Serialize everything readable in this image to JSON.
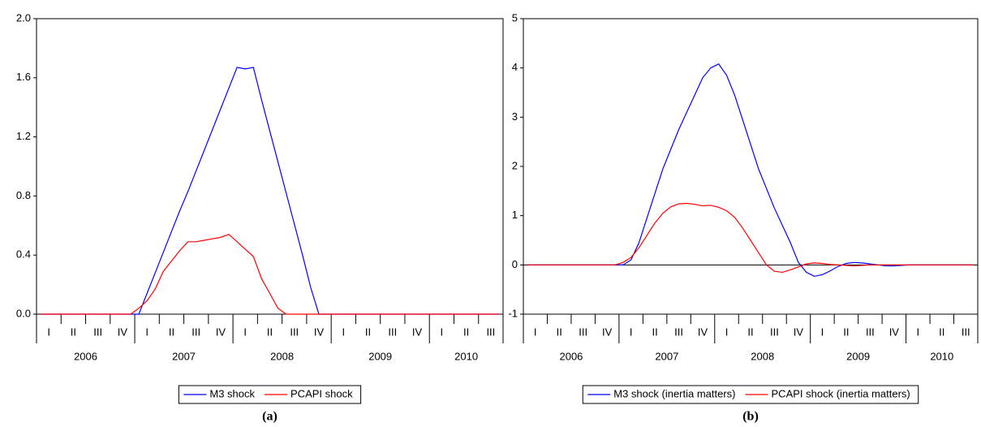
{
  "chart_data": [
    {
      "type": "line",
      "caption": "(a)",
      "categories": [
        null,
        "I",
        null,
        null,
        "II",
        null,
        null,
        "III",
        null,
        null,
        "IV",
        null,
        null,
        "I",
        null,
        null,
        "II",
        null,
        null,
        "III",
        null,
        null,
        "IV",
        null,
        null,
        "I",
        null,
        null,
        "II",
        null,
        null,
        "III",
        null,
        null,
        "IV",
        null,
        null,
        "I",
        null,
        null,
        "II",
        null,
        null,
        "III",
        null,
        null,
        "IV",
        null,
        null,
        "I",
        null,
        null,
        "II",
        null,
        null,
        "III",
        null
      ],
      "x_groups": [
        "2006",
        "2007",
        "2008",
        "2009",
        "2010"
      ],
      "series": [
        {
          "name": "M3 shock",
          "color": "#0000ff",
          "values": [
            0,
            0,
            0,
            0,
            0,
            0,
            0,
            0,
            0,
            0,
            0,
            0,
            0,
            0.14,
            0.28,
            0.42,
            0.56,
            0.7,
            0.83,
            0.97,
            1.11,
            1.25,
            1.39,
            1.53,
            1.67,
            1.66,
            1.67,
            1.45,
            1.24,
            1.03,
            0.82,
            0.61,
            0.4,
            0.18,
            0,
            0,
            0,
            0,
            0,
            0,
            0,
            0,
            0,
            0,
            0,
            0,
            0,
            0,
            0,
            0,
            0,
            0,
            0,
            0,
            0,
            0,
            0
          ]
        },
        {
          "name": "PCAPI shock",
          "color": "#ff0000",
          "values": [
            0,
            0,
            0,
            0,
            0,
            0,
            0,
            0,
            0,
            0,
            0,
            0,
            0.04,
            0.09,
            0.17,
            0.29,
            0.36,
            0.43,
            0.49,
            0.49,
            0.5,
            0.51,
            0.52,
            0.54,
            0.49,
            0.44,
            0.39,
            0.24,
            0.14,
            0.04,
            0,
            0,
            0,
            0,
            0,
            0,
            0,
            0,
            0,
            0,
            0,
            0,
            0,
            0,
            0,
            0,
            0,
            0,
            0,
            0,
            0,
            0,
            0,
            0,
            0,
            0,
            0
          ]
        }
      ],
      "ylim": [
        0,
        2
      ],
      "yticks": [
        {
          "value": 0,
          "label": "0.0"
        },
        {
          "value": 0.4,
          "label": "0.4"
        },
        {
          "value": 0.8,
          "label": "0.8"
        },
        {
          "value": 1.2,
          "label": "1.2"
        },
        {
          "value": 1.6,
          "label": "1.6"
        },
        {
          "value": 2,
          "label": "2.0"
        }
      ],
      "zero_line": false
    },
    {
      "type": "line",
      "caption": "(b)",
      "categories": [
        null,
        "I",
        null,
        null,
        "II",
        null,
        null,
        "III",
        null,
        null,
        "IV",
        null,
        null,
        "I",
        null,
        null,
        "II",
        null,
        null,
        "III",
        null,
        null,
        "IV",
        null,
        null,
        "I",
        null,
        null,
        "II",
        null,
        null,
        "III",
        null,
        null,
        "IV",
        null,
        null,
        "I",
        null,
        null,
        "II",
        null,
        null,
        "III",
        null,
        null,
        "IV",
        null,
        null,
        "I",
        null,
        null,
        "II",
        null,
        null,
        "III",
        null
      ],
      "x_groups": [
        "2006",
        "2007",
        "2008",
        "2009",
        "2010"
      ],
      "series": [
        {
          "name": "M3 shock (inertia matters)",
          "color": "#0000ff",
          "values": [
            0,
            0,
            0,
            0,
            0,
            0,
            0,
            0,
            0,
            0,
            0,
            0,
            0,
            0.1,
            0.45,
            0.95,
            1.45,
            1.95,
            2.35,
            2.75,
            3.1,
            3.45,
            3.8,
            4.0,
            4.08,
            3.85,
            3.45,
            2.95,
            2.45,
            1.95,
            1.55,
            1.15,
            0.8,
            0.45,
            0.05,
            -0.15,
            -0.23,
            -0.2,
            -0.12,
            -0.03,
            0.03,
            0.05,
            0.04,
            0.02,
            0,
            -0.02,
            -0.02,
            -0.01,
            0,
            0,
            0,
            0,
            0,
            0,
            0,
            0,
            0
          ]
        },
        {
          "name": "PCAPI shock (inertia matters)",
          "color": "#ff0000",
          "values": [
            0,
            0,
            0,
            0,
            0,
            0,
            0,
            0,
            0,
            0,
            0,
            0,
            0.05,
            0.15,
            0.35,
            0.6,
            0.85,
            1.05,
            1.18,
            1.24,
            1.25,
            1.23,
            1.2,
            1.21,
            1.17,
            1.1,
            0.97,
            0.75,
            0.5,
            0.25,
            0,
            -0.13,
            -0.15,
            -0.1,
            -0.04,
            0.02,
            0.04,
            0.03,
            0.01,
            0,
            -0.01,
            -0.02,
            -0.01,
            0,
            0,
            0,
            0,
            0,
            0,
            0,
            0,
            0,
            0,
            0,
            0,
            0,
            0
          ]
        }
      ],
      "ylim": [
        -1,
        5
      ],
      "yticks": [
        -1,
        0,
        1,
        2,
        3,
        4,
        5
      ],
      "zero_line": true
    }
  ]
}
